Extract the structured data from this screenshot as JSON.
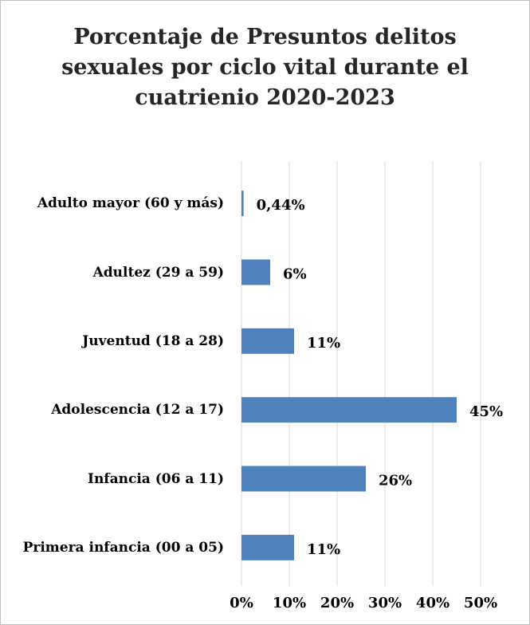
{
  "chart_data": {
    "type": "bar",
    "orientation": "horizontal",
    "title": "Porcentaje de Presuntos delitos sexuales por ciclo vital durante el cuatrienio 2020-2023",
    "categories": [
      "Adulto mayor (60 y más)",
      "Adultez (29 a 59)",
      "Juventud (18 a 28)",
      "Adolescencia (12 a 17)",
      "Infancia (06 a 11)",
      "Primera infancia (00 a 05)"
    ],
    "values": [
      0.44,
      6,
      11,
      45,
      26,
      11
    ],
    "value_labels": [
      "0,44%",
      "6%",
      "11%",
      "45%",
      "26%",
      "11%"
    ],
    "color": "#4f81bd",
    "xlim": [
      0,
      50
    ],
    "xticks": [
      {
        "value": 0,
        "label": "0%"
      },
      {
        "value": 10,
        "label": "10%"
      },
      {
        "value": 20,
        "label": "20%"
      },
      {
        "value": 30,
        "label": "30%"
      },
      {
        "value": 40,
        "label": "40%"
      },
      {
        "value": 50,
        "label": "50%"
      }
    ],
    "grid": true
  }
}
